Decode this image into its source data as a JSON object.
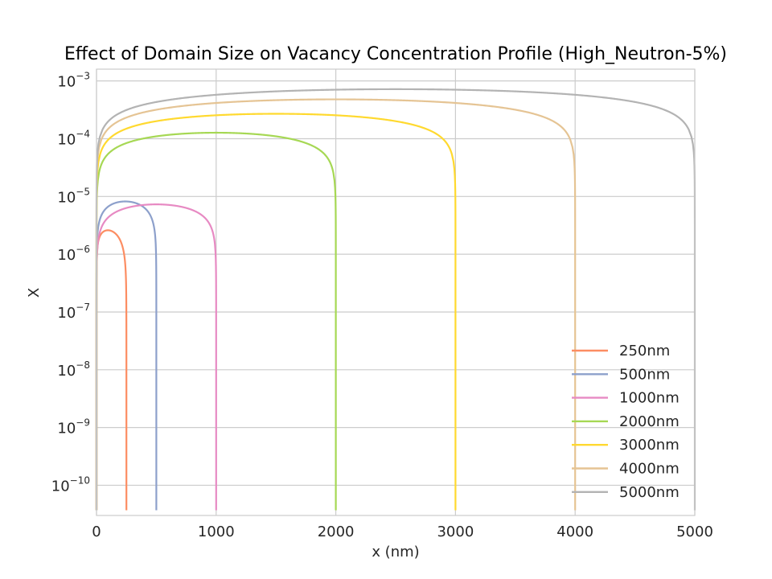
{
  "chart_data": {
    "type": "line",
    "title": "Effect of Domain Size on Vacancy Concentration Profile (High_Neutron-5%)",
    "xlabel": "x (nm)",
    "ylabel": "X",
    "xlim": [
      0,
      5000
    ],
    "ylim": [
      3e-11,
      0.0016
    ],
    "yscale": "log",
    "grid": true,
    "legend_position": "bottom-right",
    "x_ticks": [
      {
        "value": 0,
        "label": "0"
      },
      {
        "value": 1000,
        "label": "1000"
      },
      {
        "value": 2000,
        "label": "2000"
      },
      {
        "value": 3000,
        "label": "3000"
      },
      {
        "value": 4000,
        "label": "4000"
      },
      {
        "value": 5000,
        "label": "5000"
      }
    ],
    "y_ticks": [
      {
        "value": 1e-10,
        "base": "10",
        "exp": "−10"
      },
      {
        "value": 1e-09,
        "base": "10",
        "exp": "−9"
      },
      {
        "value": 1e-08,
        "base": "10",
        "exp": "−8"
      },
      {
        "value": 1e-07,
        "base": "10",
        "exp": "−7"
      },
      {
        "value": 1e-06,
        "base": "10",
        "exp": "−6"
      },
      {
        "value": 1e-05,
        "base": "10",
        "exp": "−5"
      },
      {
        "value": 0.0001,
        "base": "10",
        "exp": "−4"
      },
      {
        "value": 0.001,
        "base": "10",
        "exp": "−3"
      }
    ],
    "series": [
      {
        "name": "250nm",
        "color": "#fc8d62",
        "length": 250,
        "peak": 2.6e-06,
        "skew": 0.38
      },
      {
        "name": "500nm",
        "color": "#8da0cb",
        "length": 500,
        "peak": 8.2e-06,
        "skew": 0.48
      },
      {
        "name": "1000nm",
        "color": "#e78ac3",
        "length": 1000,
        "peak": 7.3e-06,
        "skew": 0.5
      },
      {
        "name": "2000nm",
        "color": "#a6d854",
        "length": 2000,
        "peak": 0.000127,
        "skew": 0.5
      },
      {
        "name": "3000nm",
        "color": "#ffd92f",
        "length": 3000,
        "peak": 0.00027,
        "skew": 0.5
      },
      {
        "name": "4000nm",
        "color": "#e5c494",
        "length": 4000,
        "peak": 0.00048,
        "skew": 0.5
      },
      {
        "name": "5000nm",
        "color": "#b3b3b3",
        "length": 5000,
        "peak": 0.00072,
        "skew": 0.5
      }
    ]
  }
}
